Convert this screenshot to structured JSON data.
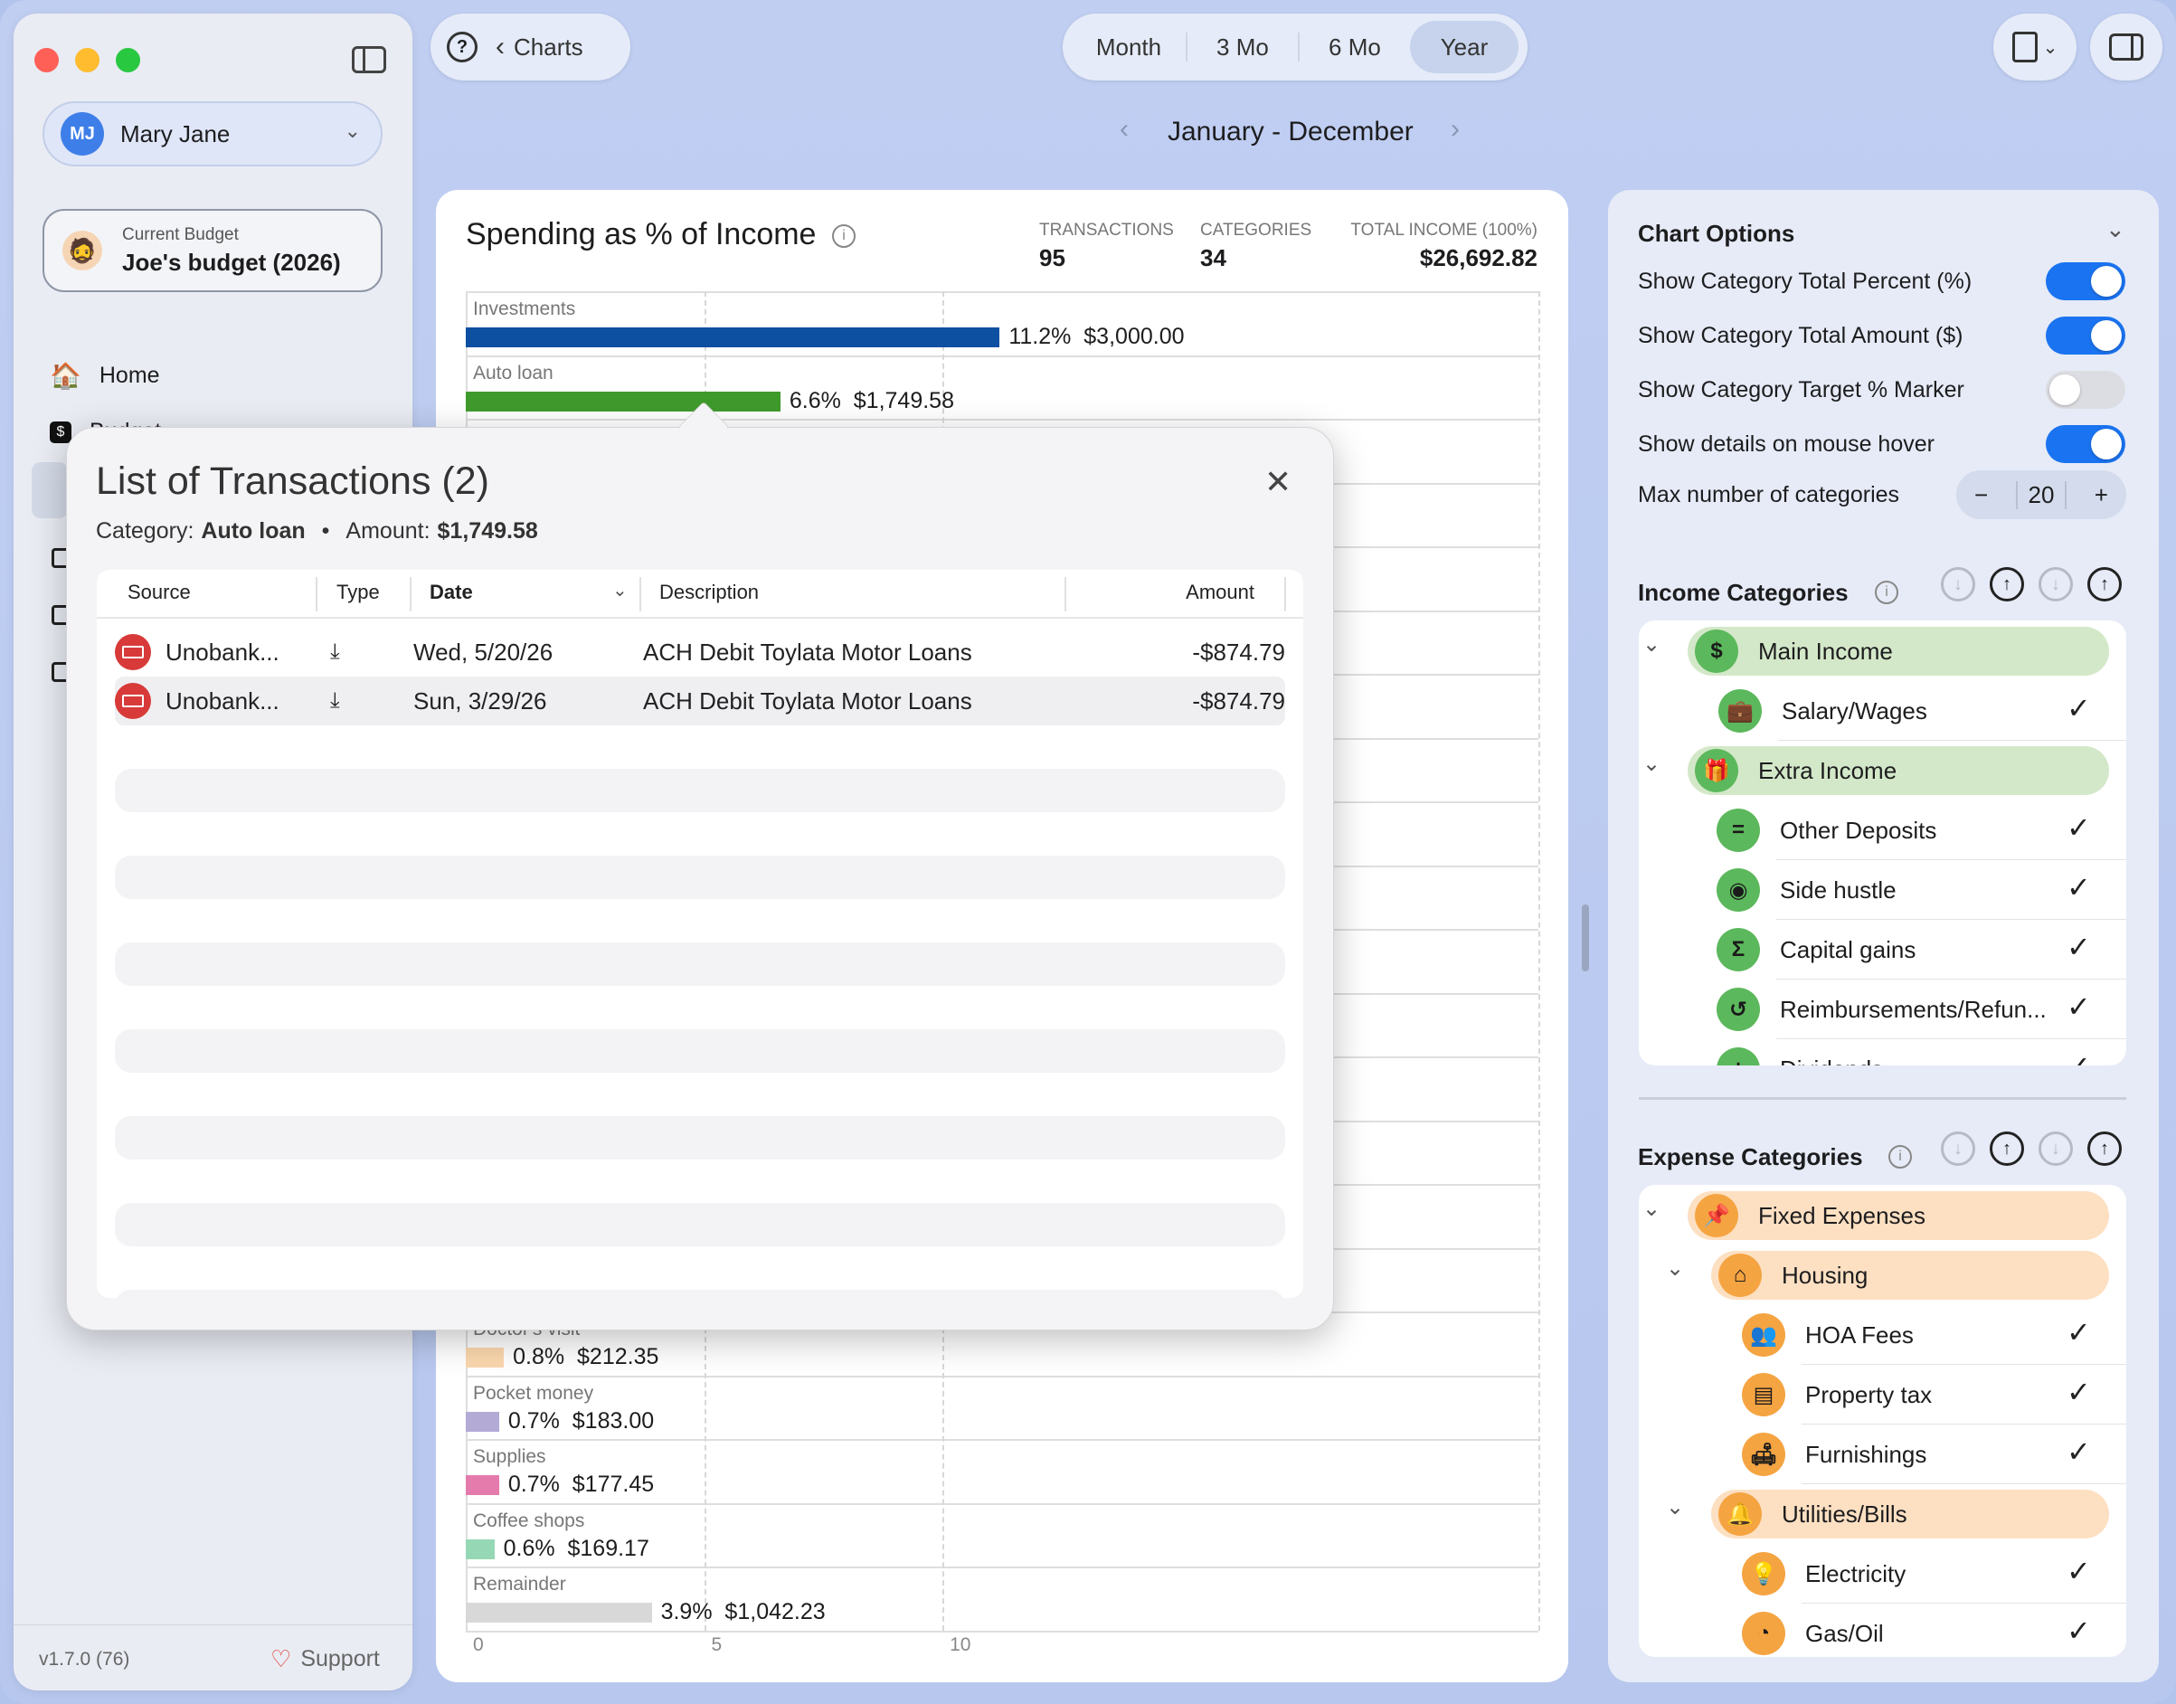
{
  "app": {
    "version": "v1.7.0 (76)",
    "support": "Support"
  },
  "sidebar": {
    "user": {
      "initials": "MJ",
      "name": "Mary Jane"
    },
    "budget": {
      "caption": "Current Budget",
      "name": "Joe's budget (2026)"
    },
    "nav": [
      {
        "label": "Home",
        "icon": "house-icon"
      },
      {
        "label": "Budget",
        "icon": "dollar-icon"
      }
    ]
  },
  "toolbar": {
    "back_label": "Charts",
    "periods": [
      "Month",
      "3 Mo",
      "6 Mo",
      "Year"
    ],
    "selected_period": "Year",
    "range": "January - December"
  },
  "chart_card": {
    "title": "Spending as % of Income",
    "stats": [
      {
        "label": "TRANSACTIONS",
        "value": "95"
      },
      {
        "label": "CATEGORIES",
        "value": "34"
      },
      {
        "label": "TOTAL INCOME (100%)",
        "value": "$26,692.82"
      }
    ]
  },
  "chart_data": {
    "type": "bar",
    "orientation": "horizontal",
    "title": "Spending as % of Income",
    "x_ticks": [
      "0",
      "5",
      "10"
    ],
    "xlim": [
      0,
      22.5
    ],
    "bars": [
      {
        "category": "Investments",
        "percent": 11.2,
        "percent_label": "11.2%",
        "amount": "$3,000.00",
        "color": "#0d4fa1",
        "row": 0
      },
      {
        "category": "Auto loan",
        "percent": 6.6,
        "percent_label": "6.6%",
        "amount": "$1,749.58",
        "color": "#3f9a2c",
        "row": 1
      },
      {
        "category": "Doctor's visit",
        "percent": 0.8,
        "percent_label": "0.8%",
        "amount": "$212.35",
        "color": "#fbd7ae",
        "row": 16
      },
      {
        "category": "Pocket money",
        "percent": 0.7,
        "percent_label": "0.7%",
        "amount": "$183.00",
        "color": "#b3aad6",
        "row": 17
      },
      {
        "category": "Supplies",
        "percent": 0.7,
        "percent_label": "0.7%",
        "amount": "$177.45",
        "color": "#e57aad",
        "row": 18
      },
      {
        "category": "Coffee shops",
        "percent": 0.6,
        "percent_label": "0.6%",
        "amount": "$169.17",
        "color": "#96d8b6",
        "row": 19
      },
      {
        "category": "Remainder",
        "percent": 3.9,
        "percent_label": "3.9%",
        "amount": "$1,042.23",
        "color": "#d8d8d8",
        "row": 20
      }
    ]
  },
  "popover": {
    "title": "List of Transactions (2)",
    "category_label": "Category:",
    "category": "Auto loan",
    "sep": "•",
    "amount_label": "Amount:",
    "amount": "$1,749.58",
    "columns": [
      "Source",
      "Type",
      "Date",
      "Description",
      "Amount"
    ],
    "rows": [
      {
        "source": "Unobank...",
        "date": "Wed, 5/20/26",
        "description": "ACH Debit Toylata Motor Loans",
        "amount": "-$874.79"
      },
      {
        "source": "Unobank...",
        "date": "Sun, 3/29/26",
        "description": "ACH Debit Toylata Motor Loans",
        "amount": "-$874.79"
      }
    ]
  },
  "chart_options": {
    "title": "Chart Options",
    "toggles": [
      {
        "label": "Show Category Total Percent (%)",
        "on": true
      },
      {
        "label": "Show Category Total Amount ($)",
        "on": true
      },
      {
        "label": "Show Category Target % Marker",
        "on": false
      },
      {
        "label": "Show details on mouse hover",
        "on": true
      }
    ],
    "max_label": "Max number of categories",
    "max_value": "20",
    "minus": "−",
    "plus": "+"
  },
  "income_categories": {
    "title": "Income Categories",
    "items": [
      {
        "label": "Main Income",
        "group": true,
        "glyph": "$"
      },
      {
        "label": "Salary/Wages",
        "glyph": "💼"
      },
      {
        "label": "Extra Income",
        "group": true,
        "glyph": "🎁"
      },
      {
        "label": "Other Deposits",
        "glyph": "="
      },
      {
        "label": "Side hustle",
        "glyph": "◉"
      },
      {
        "label": "Capital gains",
        "glyph": "Σ"
      },
      {
        "label": "Reimbursements/Refun...",
        "glyph": "↺"
      },
      {
        "label": "Dividends",
        "glyph": "+"
      }
    ]
  },
  "expense_categories": {
    "title": "Expense Categories",
    "items": [
      {
        "label": "Fixed Expenses",
        "glyph": "📌"
      },
      {
        "label": "Housing",
        "glyph": "⌂"
      },
      {
        "label": "HOA Fees",
        "glyph": "👥"
      },
      {
        "label": "Property tax",
        "glyph": "▤"
      },
      {
        "label": "Furnishings",
        "glyph": "🛋"
      },
      {
        "label": "Utilities/Bills",
        "glyph": "🔔"
      },
      {
        "label": "Electricity",
        "glyph": "💡"
      },
      {
        "label": "Gas/Oil",
        "glyph": "◔"
      }
    ]
  },
  "colors": {
    "accent": "#1a73f0",
    "income_highlight": "#d3e8c8",
    "expense_highlight": "#fde0c2",
    "income_icon": "#5cb85c",
    "expense_icon": "#f5a442"
  }
}
